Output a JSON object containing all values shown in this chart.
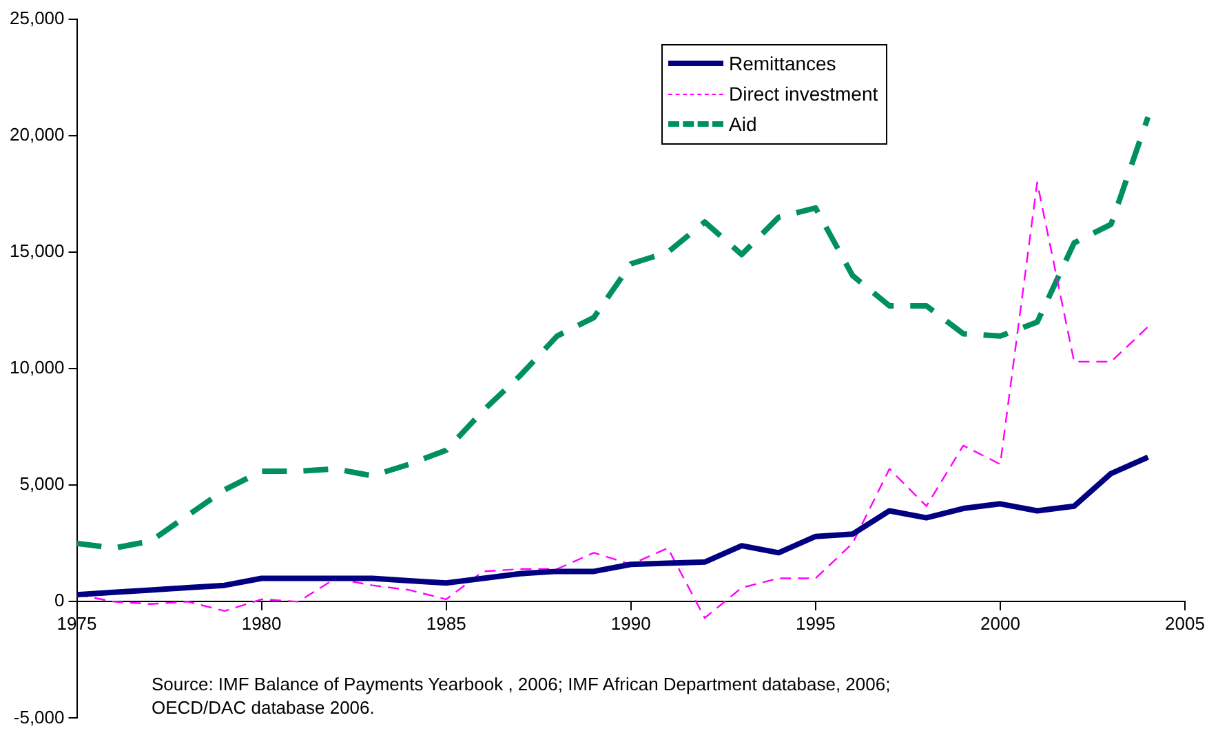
{
  "chart_data": {
    "type": "line",
    "x": [
      1975,
      1976,
      1977,
      1978,
      1979,
      1980,
      1981,
      1982,
      1983,
      1984,
      1985,
      1986,
      1987,
      1988,
      1989,
      1990,
      1991,
      1992,
      1993,
      1994,
      1995,
      1996,
      1997,
      1998,
      1999,
      2000,
      2001,
      2002,
      2003,
      2004
    ],
    "series": [
      {
        "name": "Remittances",
        "color": "#000080",
        "line_style": "solid",
        "values": [
          300,
          400,
          500,
          600,
          700,
          1000,
          1000,
          1000,
          1000,
          900,
          800,
          1000,
          1200,
          1300,
          1300,
          1600,
          1650,
          1700,
          2400,
          2100,
          2800,
          2900,
          3900,
          3600,
          4000,
          4200,
          3900,
          4100,
          5500,
          6200
        ]
      },
      {
        "name": "Direct investment",
        "color": "#ff00ff",
        "line_style": "dashed",
        "values": [
          300,
          0,
          -100,
          0,
          -400,
          100,
          0,
          1000,
          700,
          500,
          100,
          1300,
          1400,
          1400,
          2100,
          1600,
          2300,
          -700,
          600,
          1000,
          1000,
          2500,
          5700,
          4100,
          6700,
          5900,
          18000,
          10300,
          10300,
          11800
        ]
      },
      {
        "name": "Aid",
        "color": "#009060",
        "line_style": "dashed",
        "values": [
          2500,
          2300,
          2600,
          3700,
          4800,
          5600,
          5600,
          5700,
          5400,
          5900,
          6500,
          8200,
          9700,
          11400,
          12200,
          14500,
          15000,
          16300,
          14900,
          16500,
          16900,
          14000,
          12700,
          12700,
          11500,
          11400,
          12000,
          15400,
          16200,
          20800
        ]
      }
    ],
    "xlim": [
      1975,
      2005
    ],
    "xticks": [
      1975,
      1980,
      1985,
      1990,
      1995,
      2000,
      2005
    ],
    "ylim": [
      -5000,
      25000
    ],
    "yticks": [
      {
        "value": -5000,
        "label": "-5,000"
      },
      0,
      {
        "value": 5000,
        "label": "5,000"
      },
      {
        "value": 10000,
        "label": "10,000"
      },
      {
        "value": 15000,
        "label": "15,000"
      },
      {
        "value": 20000,
        "label": "20,000"
      },
      {
        "value": 25000,
        "label": "25,000"
      }
    ],
    "grid": false,
    "legend": "top",
    "marker": "none",
    "annotations": [
      "Source: IMF Balance of Payments Yearbook , 2006; IMF African Department database, 2006; OECD/DAC database 2006."
    ]
  }
}
